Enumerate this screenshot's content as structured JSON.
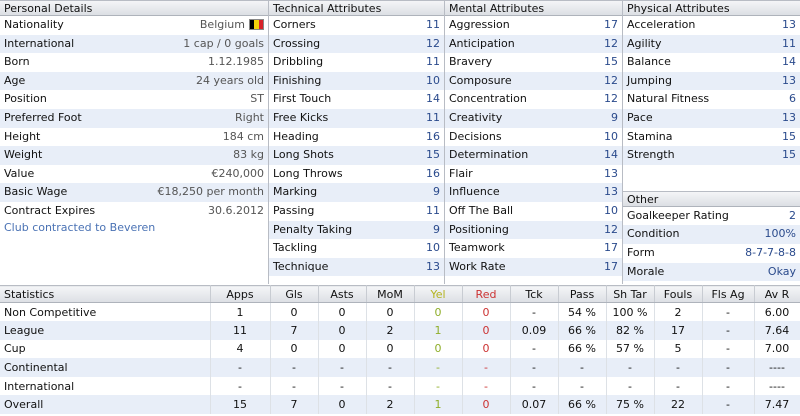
{
  "personal": {
    "title": "Personal Details",
    "rows": [
      {
        "label": "Nationality",
        "value": "Belgium"
      },
      {
        "label": "International",
        "value": "1 cap / 0 goals"
      },
      {
        "label": "Born",
        "value": "1.12.1985"
      },
      {
        "label": "Age",
        "value": "24 years old"
      },
      {
        "label": "Position",
        "value": "ST"
      },
      {
        "label": "Preferred Foot",
        "value": "Right"
      },
      {
        "label": "Height",
        "value": "184 cm"
      },
      {
        "label": "Weight",
        "value": "83 kg"
      },
      {
        "label": "Value",
        "value": "€240,000"
      },
      {
        "label": "Basic Wage",
        "value": "€18,250 per month"
      },
      {
        "label": "Contract Expires",
        "value": "30.6.2012"
      }
    ],
    "club_link": "Club contracted to Beveren",
    "flag_colors": [
      "#000000",
      "#f5d20a",
      "#d8232a"
    ]
  },
  "technical": {
    "title": "Technical Attributes",
    "rows": [
      {
        "label": "Corners",
        "value": "11"
      },
      {
        "label": "Crossing",
        "value": "12"
      },
      {
        "label": "Dribbling",
        "value": "11"
      },
      {
        "label": "Finishing",
        "value": "10"
      },
      {
        "label": "First Touch",
        "value": "14"
      },
      {
        "label": "Free Kicks",
        "value": "11"
      },
      {
        "label": "Heading",
        "value": "16"
      },
      {
        "label": "Long Shots",
        "value": "15"
      },
      {
        "label": "Long Throws",
        "value": "16"
      },
      {
        "label": "Marking",
        "value": "9"
      },
      {
        "label": "Passing",
        "value": "11"
      },
      {
        "label": "Penalty Taking",
        "value": "9"
      },
      {
        "label": "Tackling",
        "value": "10"
      },
      {
        "label": "Technique",
        "value": "13"
      }
    ]
  },
  "mental": {
    "title": "Mental Attributes",
    "rows": [
      {
        "label": "Aggression",
        "value": "17"
      },
      {
        "label": "Anticipation",
        "value": "12"
      },
      {
        "label": "Bravery",
        "value": "15"
      },
      {
        "label": "Composure",
        "value": "12"
      },
      {
        "label": "Concentration",
        "value": "12"
      },
      {
        "label": "Creativity",
        "value": "9"
      },
      {
        "label": "Decisions",
        "value": "10"
      },
      {
        "label": "Determination",
        "value": "14"
      },
      {
        "label": "Flair",
        "value": "13"
      },
      {
        "label": "Influence",
        "value": "13"
      },
      {
        "label": "Off The Ball",
        "value": "10"
      },
      {
        "label": "Positioning",
        "value": "12"
      },
      {
        "label": "Teamwork",
        "value": "17"
      },
      {
        "label": "Work Rate",
        "value": "17"
      }
    ]
  },
  "physical": {
    "title": "Physical Attributes",
    "rows": [
      {
        "label": "Acceleration",
        "value": "13"
      },
      {
        "label": "Agility",
        "value": "11"
      },
      {
        "label": "Balance",
        "value": "14"
      },
      {
        "label": "Jumping",
        "value": "13"
      },
      {
        "label": "Natural Fitness",
        "value": "6"
      },
      {
        "label": "Pace",
        "value": "13"
      },
      {
        "label": "Stamina",
        "value": "15"
      },
      {
        "label": "Strength",
        "value": "15"
      }
    ]
  },
  "other": {
    "title": "Other",
    "rows": [
      {
        "label": "Goalkeeper Rating",
        "value": "2"
      },
      {
        "label": "Condition",
        "value": "100%"
      },
      {
        "label": "Form",
        "value": "8-7-7-8-8"
      },
      {
        "label": "Morale",
        "value": "Okay"
      }
    ]
  },
  "statistics": {
    "headers": [
      "Statistics",
      "Apps",
      "Gls",
      "Asts",
      "MoM",
      "Yel",
      "Red",
      "Tck",
      "Pass",
      "Sh Tar",
      "Fouls",
      "Fls Ag",
      "Av R"
    ],
    "rows": [
      [
        "Non Competitive",
        "1",
        "0",
        "0",
        "0",
        "0",
        "0",
        "-",
        "54 %",
        "100 %",
        "2",
        "-",
        "6.00"
      ],
      [
        "League",
        "11",
        "7",
        "0",
        "2",
        "1",
        "0",
        "0.09",
        "66 %",
        "82 %",
        "17",
        "-",
        "7.64"
      ],
      [
        "Cup",
        "4",
        "0",
        "0",
        "0",
        "0",
        "0",
        "-",
        "66 %",
        "57 %",
        "5",
        "-",
        "7.00"
      ],
      [
        "Continental",
        "-",
        "-",
        "-",
        "-",
        "-",
        "-",
        "-",
        "-",
        "-",
        "-",
        "-",
        "----"
      ],
      [
        "International",
        "-",
        "-",
        "-",
        "-",
        "-",
        "-",
        "-",
        "-",
        "-",
        "-",
        "-",
        "----"
      ],
      [
        "Overall",
        "15",
        "7",
        "0",
        "2",
        "1",
        "0",
        "0.07",
        "66 %",
        "75 %",
        "22",
        "-",
        "7.47"
      ]
    ]
  }
}
